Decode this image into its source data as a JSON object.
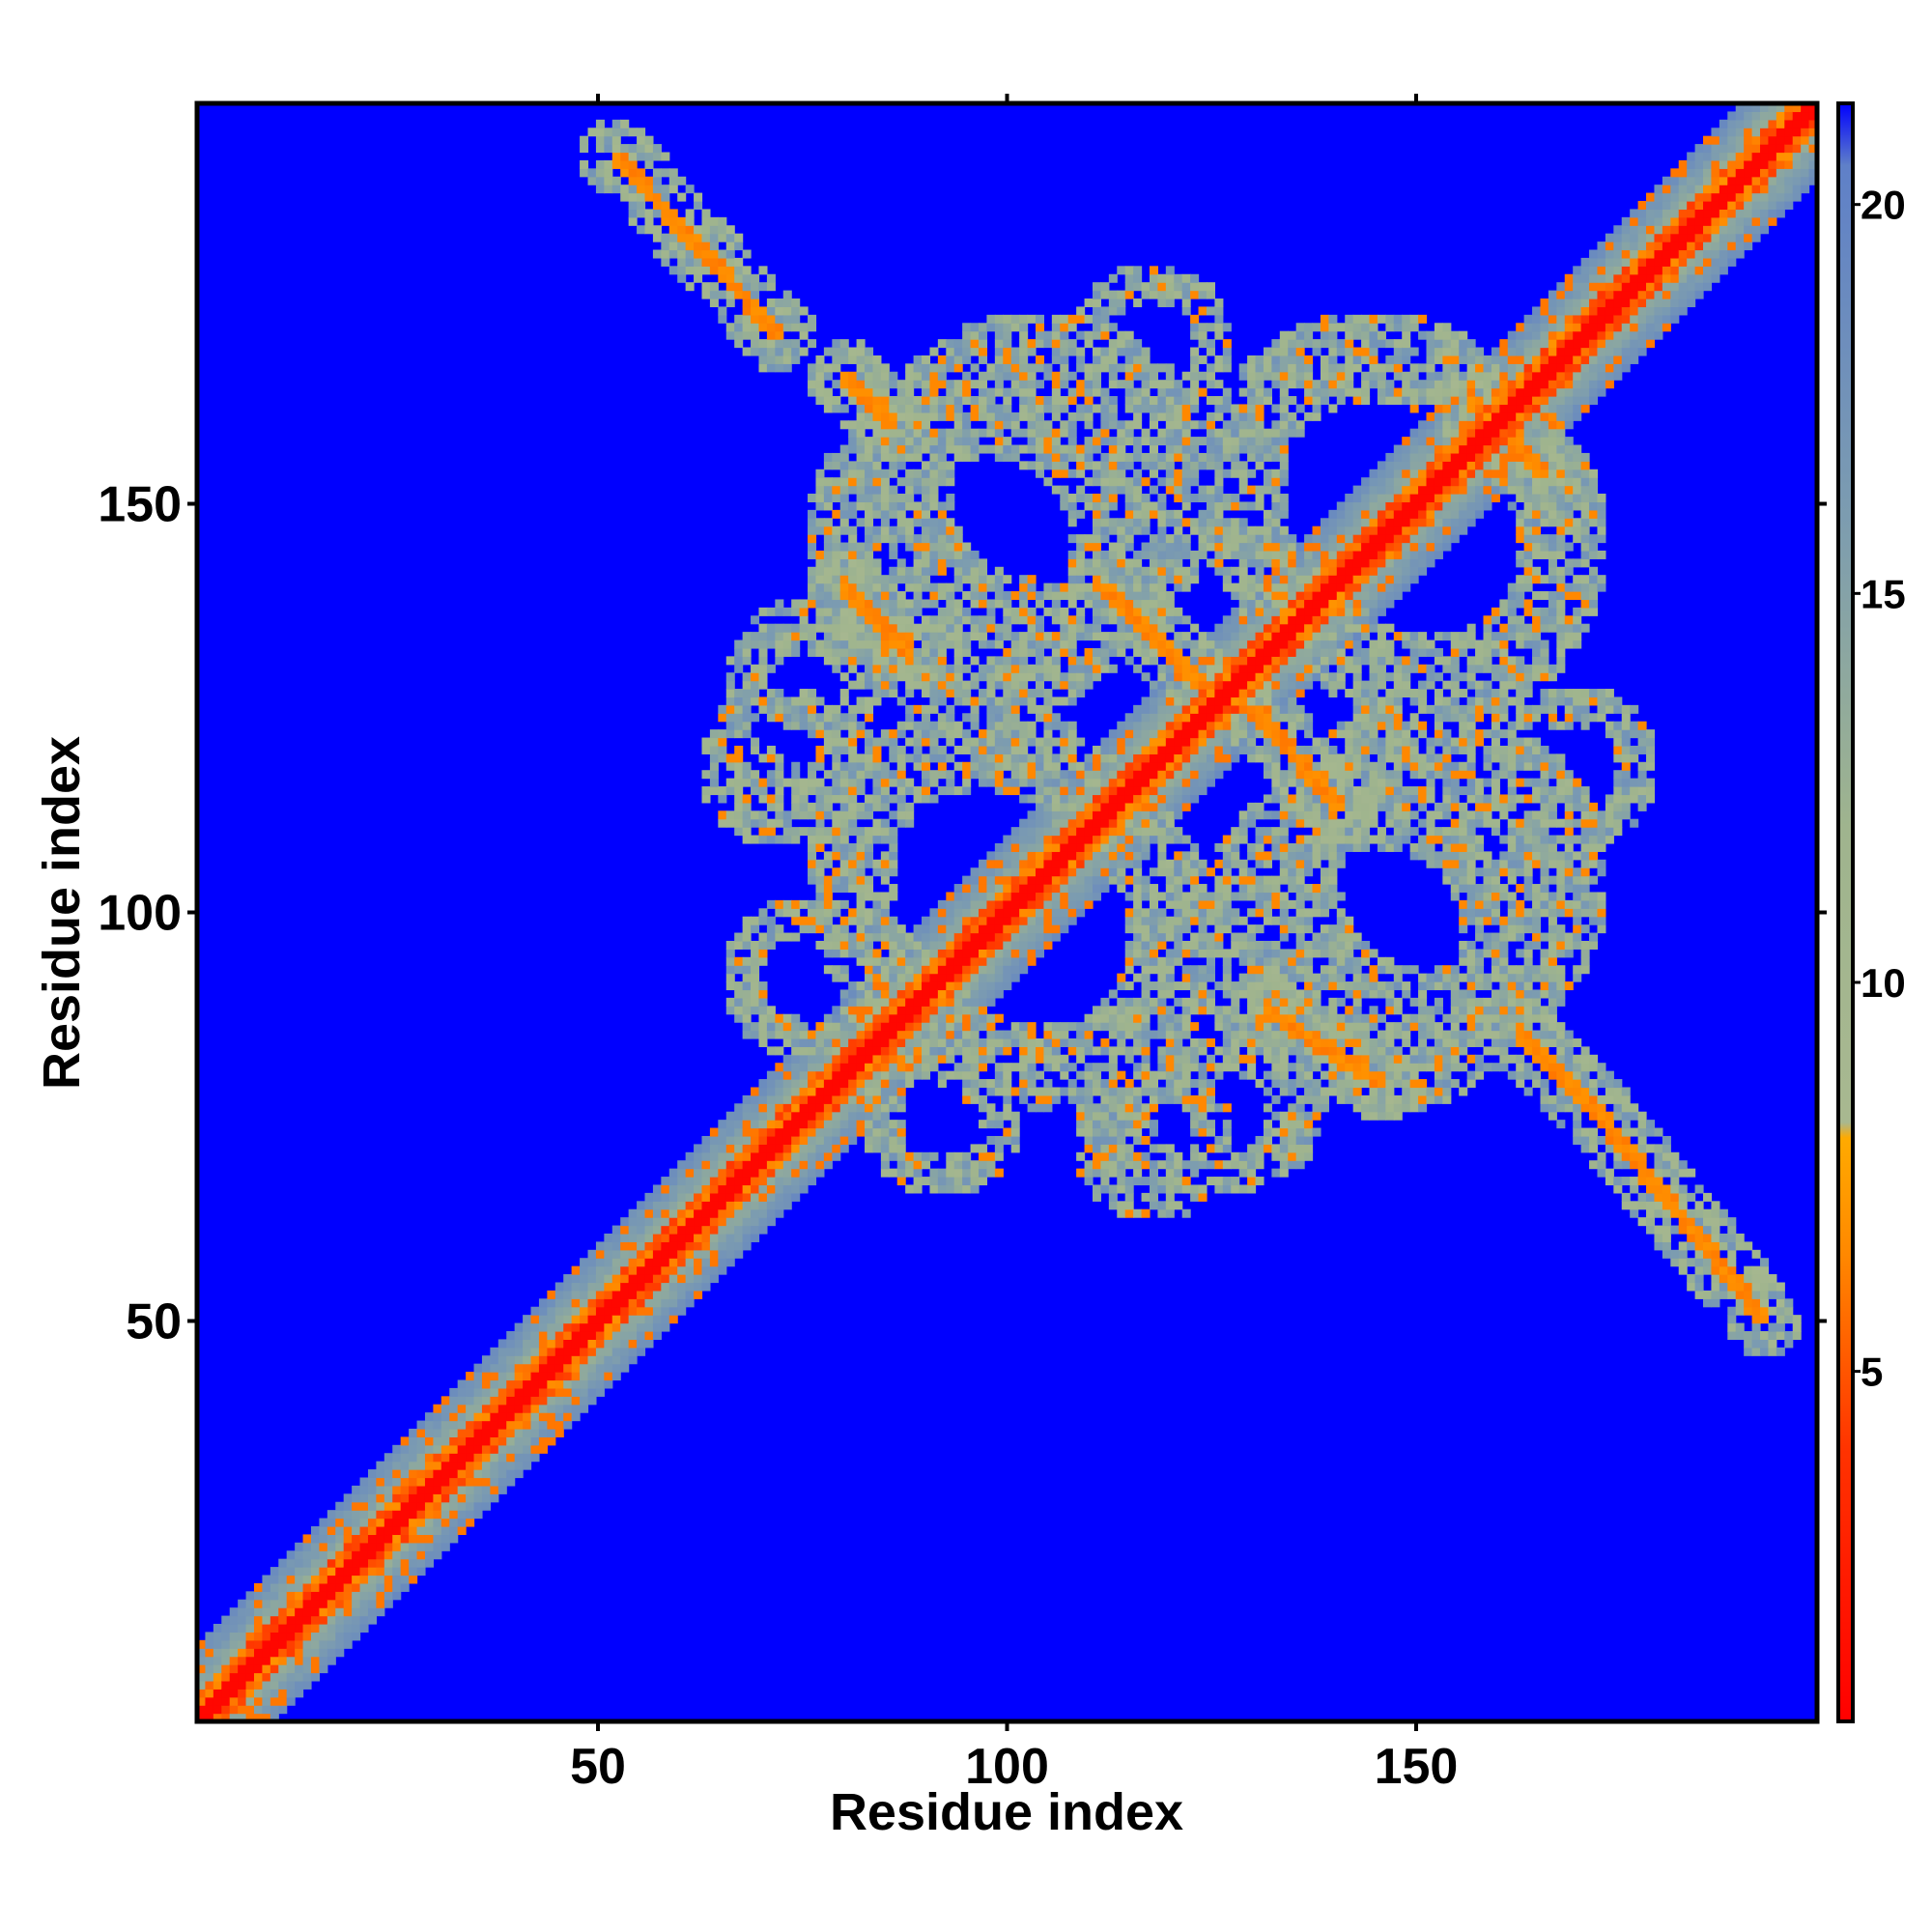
{
  "chart_data": {
    "type": "heatmap",
    "title": "",
    "xlabel": "Residue index",
    "ylabel": "Residue index",
    "xlim": [
      1,
      199
    ],
    "ylim": [
      1,
      199
    ],
    "x_ticks": [
      50,
      100,
      150
    ],
    "y_ticks": [
      50,
      100,
      150
    ],
    "n_residues": 199,
    "colorbar": {
      "ticks": [
        5,
        10,
        15,
        20
      ],
      "range": [
        0.5,
        21.3
      ],
      "stops": [
        {
          "value": 0.5,
          "color": "#ff0000"
        },
        {
          "value": 4.0,
          "color": "#ff3300"
        },
        {
          "value": 6.5,
          "color": "#ff8800"
        },
        {
          "value": 8.0,
          "color": "#ffaa00"
        },
        {
          "value": 8.2,
          "color": "#a8b890"
        },
        {
          "value": 12.0,
          "color": "#9fb48e"
        },
        {
          "value": 16.0,
          "color": "#7c9cb0"
        },
        {
          "value": 20.5,
          "color": "#5f80c8"
        },
        {
          "value": 21.3,
          "color": "#0000ff"
        }
      ]
    },
    "background_color": "#0000ff",
    "features": {
      "diagonal_band": true,
      "anti_diagonal_contacts": [
        {
          "x": [
            52,
            72
          ],
          "y": [
            193,
            171
          ]
        },
        {
          "x": [
            80,
            86
          ],
          "y": [
            166,
            160
          ]
        },
        {
          "x": [
            80,
            88
          ],
          "y": [
            140,
            132
          ]
        },
        {
          "x": [
            112,
            125
          ],
          "y": [
            140,
            127
          ]
        },
        {
          "x": [
            130,
            141
          ],
          "y": [
            125,
            113
          ]
        },
        {
          "x": [
            132,
            146
          ],
          "y": [
            88,
            79
          ]
        },
        {
          "x": [
            163,
            172
          ],
          "y": [
            85,
            76
          ]
        },
        {
          "x": [
            157,
            166
          ],
          "y": [
            163,
            154
          ]
        },
        {
          "x": [
            172,
            193
          ],
          "y": [
            76,
            50
          ]
        }
      ]
    }
  }
}
